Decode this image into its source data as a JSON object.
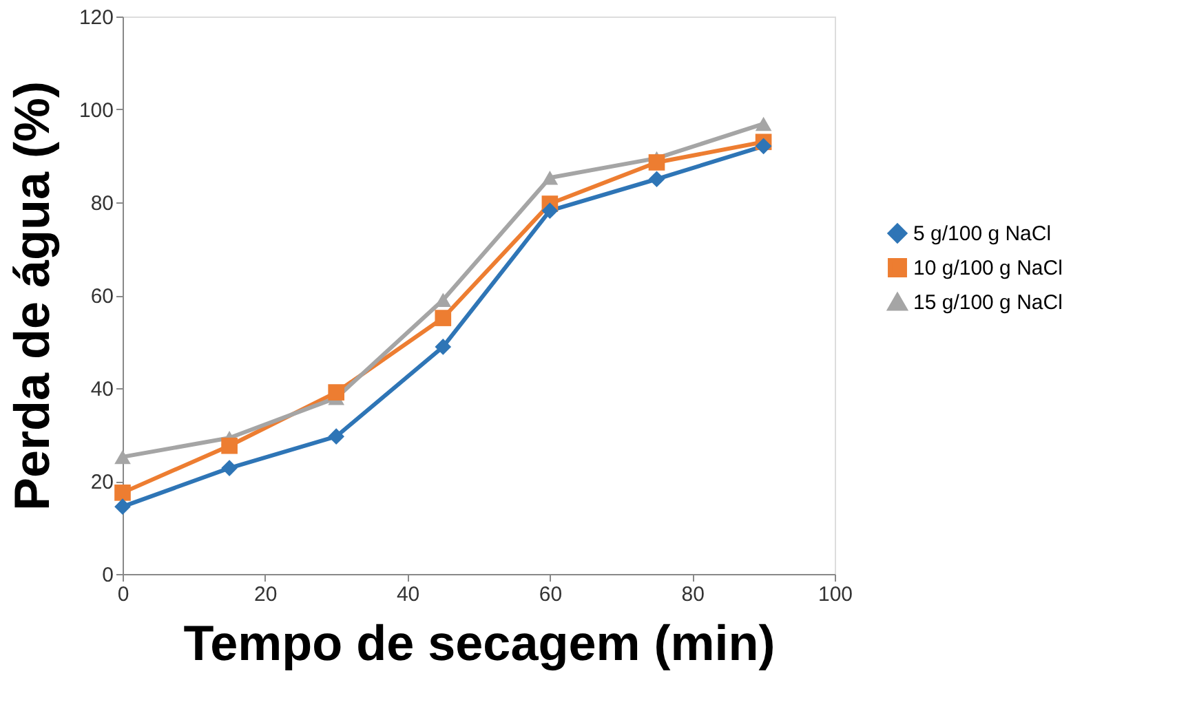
{
  "chart_data": {
    "type": "line",
    "xlabel": "Tempo de secagem (min)",
    "ylabel": "Perda de água (%)",
    "x": [
      0,
      15,
      30,
      45,
      60,
      75,
      90
    ],
    "series": [
      {
        "name": "5 g/100 g NaCl",
        "color": "#2e75b6",
        "marker": "diamond",
        "values": [
          14.5,
          22.8,
          29.6,
          48.9,
          78.2,
          85,
          92.1
        ]
      },
      {
        "name": "10 g/100 g NaCl",
        "color": "#ed7d31",
        "marker": "square",
        "values": [
          17.5,
          27.6,
          39.1,
          55.1,
          79.7,
          88.6,
          93
        ]
      },
      {
        "name": "15 g/100 g NaCl",
        "color": "#a5a5a5",
        "marker": "triangle",
        "values": [
          25.2,
          29.3,
          37.9,
          59,
          85.3,
          89.5,
          96.9
        ]
      }
    ],
    "xlim": [
      0,
      100
    ],
    "xticks": [
      0,
      20,
      40,
      60,
      80,
      100
    ],
    "ylim": [
      0,
      120
    ],
    "yticks": [
      0,
      20,
      40,
      60,
      80,
      100,
      120
    ],
    "grid": false,
    "legend": "right",
    "line_style": "solid"
  }
}
